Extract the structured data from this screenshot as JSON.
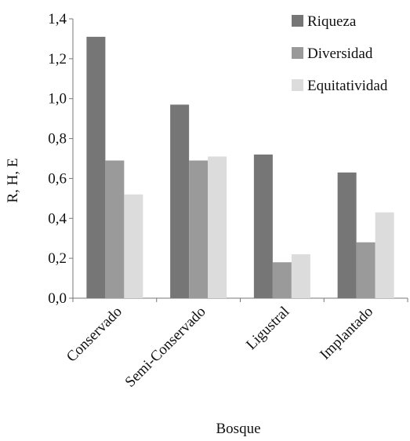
{
  "chart_data": {
    "type": "bar",
    "title": "",
    "xlabel": "Bosque",
    "ylabel": "R, H, E",
    "ylim": [
      0,
      1.4
    ],
    "yticks": [
      "0,0",
      "0,2",
      "0,4",
      "0,6",
      "0,8",
      "1,0",
      "1,2",
      "1,4"
    ],
    "categories": [
      "Conservado",
      "Semi-Conservado",
      "Ligustral",
      "Implantado"
    ],
    "series": [
      {
        "name": "Riqueza",
        "color": "#767676",
        "values": [
          1.31,
          0.97,
          0.72,
          0.63
        ]
      },
      {
        "name": "Diversidad",
        "color": "#9a9a9a",
        "values": [
          0.69,
          0.69,
          0.18,
          0.28
        ]
      },
      {
        "name": "Equitatividad",
        "color": "#dcdcdc",
        "values": [
          0.52,
          0.71,
          0.22,
          0.43
        ]
      }
    ],
    "legend_position": "top-right",
    "grid": false
  }
}
